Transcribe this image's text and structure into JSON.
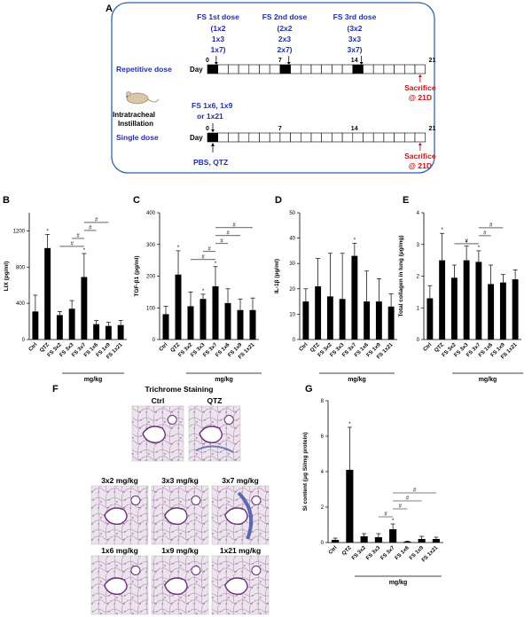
{
  "panel_labels": [
    "A",
    "B",
    "C",
    "D",
    "E",
    "F",
    "G"
  ],
  "schema": {
    "dose_labels": [
      {
        "title": "FS 1st dose",
        "lines": [
          "(1x2",
          "1x3",
          "1x7)"
        ]
      },
      {
        "title": "FS 2nd dose",
        "lines": [
          "(2x2",
          "2x3",
          "2x7)"
        ]
      },
      {
        "title": "FS 3rd dose",
        "lines": [
          "(3x2",
          "3x3",
          "3x7)"
        ]
      }
    ],
    "repetitive_label": "Repetitive dose",
    "single_label": "Single dose",
    "day_label": "Day",
    "instillation_lines": [
      "Intratracheal",
      "Instillation"
    ],
    "single_dose_lines": [
      "FS 1x6, 1x9",
      "or 1x21"
    ],
    "pbs_label": "PBS, QTZ",
    "day_ticks": [
      "0",
      "7",
      "14",
      "21"
    ],
    "sacrifice_lines": [
      "Sacrifice",
      "@ 21D"
    ],
    "colors": {
      "blue": "#1f2fb0",
      "red": "#d01010",
      "box_stroke": "#2f63b8"
    },
    "dose_days": [
      0,
      7,
      14
    ],
    "single_dose_day": 0,
    "total_days": 21
  },
  "x_categories": [
    "Ctrl",
    "QTZ",
    "FS 3x2",
    "FS 3x3",
    "FS 3x7",
    "FS 1x6",
    "FS 1x9",
    "FS 1x21"
  ],
  "unit_label": "mg/kg",
  "sig_marks": [
    "*",
    "#"
  ],
  "chart_data": [
    {
      "panel": "B",
      "type": "bar",
      "ylabel": "LIX (pg/ml)",
      "ylim": [
        0,
        1400
      ],
      "yticks": [
        0,
        400,
        800,
        1200
      ],
      "values": [
        310,
        1010,
        270,
        340,
        690,
        170,
        150,
        160
      ],
      "errors": [
        180,
        150,
        40,
        90,
        260,
        40,
        40,
        50
      ],
      "stars": [
        1,
        4
      ],
      "brackets": [
        [
          2,
          4
        ],
        [
          3,
          4
        ],
        [
          4,
          5
        ],
        [
          4,
          6
        ]
      ]
    },
    {
      "panel": "C",
      "type": "bar",
      "ylabel": "TGF-β1 (pg/ml)",
      "ylim": [
        0,
        400
      ],
      "yticks": [
        0,
        100,
        200,
        300,
        400
      ],
      "values": [
        80,
        205,
        105,
        128,
        168,
        115,
        93,
        93
      ],
      "errors": [
        25,
        75,
        45,
        15,
        62,
        45,
        35,
        38
      ],
      "stars": [
        1,
        3,
        4
      ],
      "brackets": [
        [
          2,
          4
        ],
        [
          3,
          4
        ],
        [
          4,
          5
        ],
        [
          4,
          6
        ],
        [
          4,
          7
        ]
      ]
    },
    {
      "panel": "D",
      "type": "bar",
      "ylabel": "IL-1β (pg/ml)",
      "ylim": [
        0,
        50
      ],
      "yticks": [
        0,
        10,
        20,
        30,
        40,
        50
      ],
      "values": [
        15,
        21,
        17,
        16,
        33,
        15,
        15,
        13
      ],
      "errors": [
        5,
        11,
        17,
        18,
        5,
        12,
        9,
        5
      ],
      "stars": [
        4
      ],
      "brackets": []
    },
    {
      "panel": "E",
      "type": "bar",
      "ylabel": "Total collagen in lung (μg/mg)",
      "ylim": [
        0,
        4
      ],
      "yticks": [
        0,
        1,
        2,
        3,
        4
      ],
      "values": [
        1.3,
        2.5,
        1.95,
        2.5,
        2.45,
        1.75,
        1.8,
        1.9
      ],
      "errors": [
        0.4,
        0.85,
        0.4,
        0.45,
        0.35,
        0.6,
        0.25,
        0.3
      ],
      "stars": [
        1,
        3,
        4
      ],
      "brackets": [
        [
          2,
          4
        ],
        [
          4,
          5
        ],
        [
          4,
          6
        ]
      ]
    },
    {
      "panel": "G",
      "type": "bar",
      "ylabel": "Si content (μg Si/mg protein)",
      "ylim": [
        0,
        8
      ],
      "yticks": [
        0,
        2,
        4,
        6,
        8
      ],
      "values": [
        0.15,
        4.1,
        0.35,
        0.3,
        0.75,
        0.05,
        0.2,
        0.2
      ],
      "errors": [
        0.1,
        2.4,
        0.15,
        0.2,
        0.3,
        0.03,
        0.15,
        0.1
      ],
      "stars": [
        1,
        4
      ],
      "brackets": [
        [
          3,
          4
        ],
        [
          4,
          5
        ],
        [
          4,
          6
        ],
        [
          4,
          7
        ]
      ]
    }
  ],
  "histology": {
    "title": "Trichrome Staining",
    "rows": [
      [
        "Ctrl",
        "QTZ"
      ],
      [
        "3x2 mg/kg",
        "3x3 mg/kg",
        "3x7 mg/kg"
      ],
      [
        "1x6 mg/kg",
        "1x9 mg/kg",
        "1x21 mg/kg"
      ]
    ]
  }
}
